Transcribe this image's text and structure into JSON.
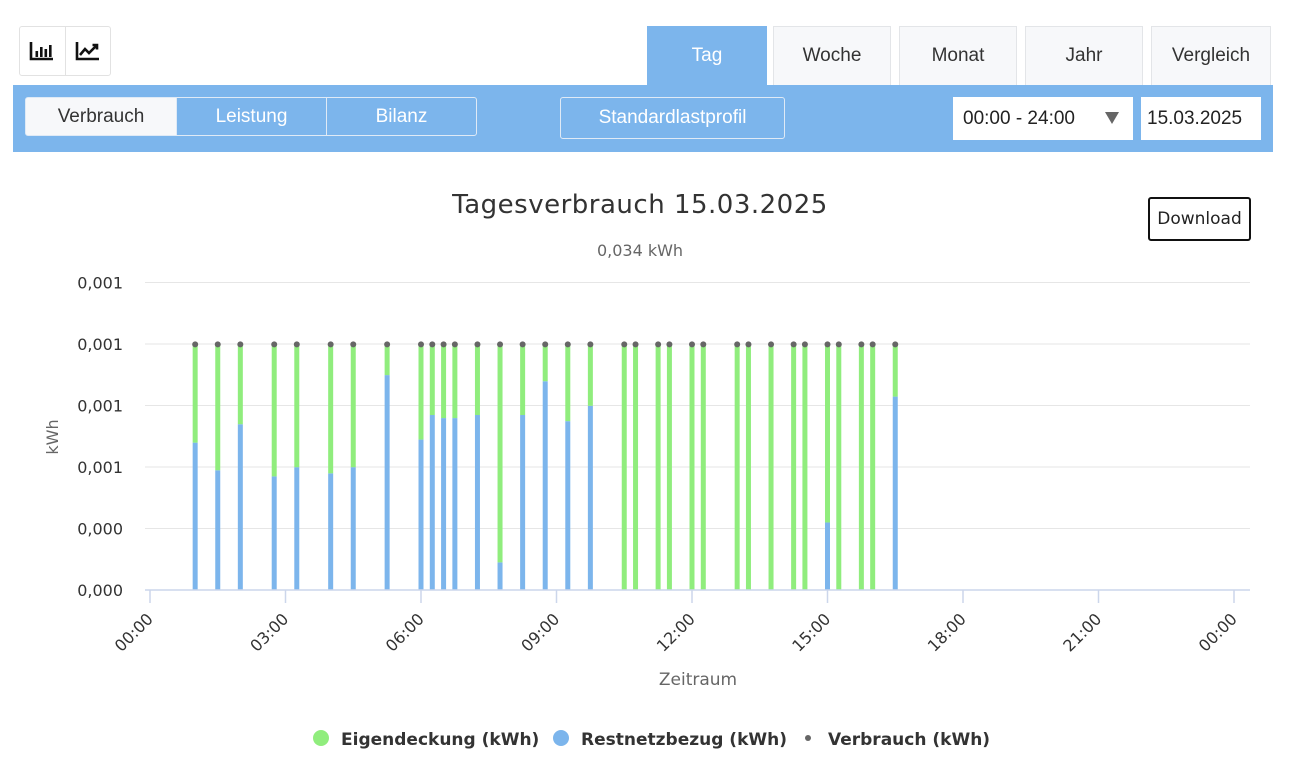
{
  "toolbar_icons": [
    {
      "name": "bar-chart-icon"
    },
    {
      "name": "line-chart-icon"
    }
  ],
  "tabs": [
    {
      "label": "Tag",
      "active": true
    },
    {
      "label": "Woche",
      "active": false
    },
    {
      "label": "Monat",
      "active": false
    },
    {
      "label": "Jahr",
      "active": false
    },
    {
      "label": "Vergleich",
      "active": false
    }
  ],
  "modes": [
    {
      "label": "Verbrauch",
      "active": true
    },
    {
      "label": "Leistung",
      "active": false
    },
    {
      "label": "Bilanz",
      "active": false
    }
  ],
  "profile_button": "Standardlastprofil",
  "time_range": "00:00 - 24:00",
  "date": "15.03.2025",
  "download_label": "Download",
  "colors": {
    "accent": "#7cb5ec",
    "eigendeckung": "#90ed7d",
    "restnetzbezug": "#7cb5ec",
    "verbrauch": "#666666"
  },
  "chart_data": {
    "type": "bar",
    "stacked": true,
    "title": "Tagesverbrauch 15.03.2025",
    "subtitle": "0,034 kWh",
    "xlabel": "Zeitraum",
    "ylabel": "kWh",
    "y_tick_labels": [
      "0,000",
      "0,000",
      "0,001",
      "0,001",
      "0,001",
      "0,001"
    ],
    "ylim": [
      0,
      0.001
    ],
    "x_tick_labels": [
      "00:00",
      "03:00",
      "06:00",
      "09:00",
      "12:00",
      "15:00",
      "18:00",
      "21:00",
      "00:00"
    ],
    "x_range_hours": [
      0,
      24
    ],
    "grid": true,
    "legend_position": "bottom",
    "series": [
      {
        "name": "Eigendeckung (kWh)",
        "type": "bar"
      },
      {
        "name": "Restnetzbezug (kWh)",
        "type": "bar"
      },
      {
        "name": "Verbrauch (kWh)",
        "type": "scatter"
      }
    ],
    "points": [
      {
        "time": "01:00",
        "restnetzbezug": 0.00048,
        "eigendeckung": 0.00032,
        "verbrauch": 0.0008
      },
      {
        "time": "01:30",
        "restnetzbezug": 0.00039,
        "eigendeckung": 0.00041,
        "verbrauch": 0.0008
      },
      {
        "time": "02:00",
        "restnetzbezug": 0.00054,
        "eigendeckung": 0.00026,
        "verbrauch": 0.0008
      },
      {
        "time": "02:45",
        "restnetzbezug": 0.00037,
        "eigendeckung": 0.00043,
        "verbrauch": 0.0008
      },
      {
        "time": "03:15",
        "restnetzbezug": 0.0004,
        "eigendeckung": 0.0004,
        "verbrauch": 0.0008
      },
      {
        "time": "04:00",
        "restnetzbezug": 0.00038,
        "eigendeckung": 0.00042,
        "verbrauch": 0.0008
      },
      {
        "time": "04:30",
        "restnetzbezug": 0.0004,
        "eigendeckung": 0.0004,
        "verbrauch": 0.0008
      },
      {
        "time": "05:15",
        "restnetzbezug": 0.0007,
        "eigendeckung": 0.0001,
        "verbrauch": 0.0008
      },
      {
        "time": "06:00",
        "restnetzbezug": 0.00049,
        "eigendeckung": 0.00031,
        "verbrauch": 0.0008
      },
      {
        "time": "06:15",
        "restnetzbezug": 0.00057,
        "eigendeckung": 0.00023,
        "verbrauch": 0.0008
      },
      {
        "time": "06:30",
        "restnetzbezug": 0.00056,
        "eigendeckung": 0.00024,
        "verbrauch": 0.0008
      },
      {
        "time": "06:45",
        "restnetzbezug": 0.00056,
        "eigendeckung": 0.00024,
        "verbrauch": 0.0008
      },
      {
        "time": "07:15",
        "restnetzbezug": 0.00057,
        "eigendeckung": 0.00023,
        "verbrauch": 0.0008
      },
      {
        "time": "07:45",
        "restnetzbezug": 9e-05,
        "eigendeckung": 0.00071,
        "verbrauch": 0.0008
      },
      {
        "time": "08:15",
        "restnetzbezug": 0.00057,
        "eigendeckung": 0.00023,
        "verbrauch": 0.0008
      },
      {
        "time": "08:45",
        "restnetzbezug": 0.00068,
        "eigendeckung": 0.00012,
        "verbrauch": 0.0008
      },
      {
        "time": "09:15",
        "restnetzbezug": 0.00055,
        "eigendeckung": 0.00025,
        "verbrauch": 0.0008
      },
      {
        "time": "09:45",
        "restnetzbezug": 0.0006,
        "eigendeckung": 0.0002,
        "verbrauch": 0.0008
      },
      {
        "time": "10:30",
        "restnetzbezug": 0,
        "eigendeckung": 0.0008,
        "verbrauch": 0.0008
      },
      {
        "time": "10:45",
        "restnetzbezug": 0,
        "eigendeckung": 0.0008,
        "verbrauch": 0.0008
      },
      {
        "time": "11:15",
        "restnetzbezug": 0,
        "eigendeckung": 0.0008,
        "verbrauch": 0.0008
      },
      {
        "time": "11:30",
        "restnetzbezug": 0,
        "eigendeckung": 0.0008,
        "verbrauch": 0.0008
      },
      {
        "time": "12:00",
        "restnetzbezug": 0,
        "eigendeckung": 0.0008,
        "verbrauch": 0.0008
      },
      {
        "time": "12:15",
        "restnetzbezug": 0,
        "eigendeckung": 0.0008,
        "verbrauch": 0.0008
      },
      {
        "time": "13:00",
        "restnetzbezug": 0,
        "eigendeckung": 0.0008,
        "verbrauch": 0.0008
      },
      {
        "time": "13:15",
        "restnetzbezug": 0,
        "eigendeckung": 0.0008,
        "verbrauch": 0.0008
      },
      {
        "time": "13:45",
        "restnetzbezug": 0,
        "eigendeckung": 0.0008,
        "verbrauch": 0.0008
      },
      {
        "time": "14:15",
        "restnetzbezug": 0,
        "eigendeckung": 0.0008,
        "verbrauch": 0.0008
      },
      {
        "time": "14:30",
        "restnetzbezug": 0,
        "eigendeckung": 0.0008,
        "verbrauch": 0.0008
      },
      {
        "time": "15:00",
        "restnetzbezug": 0.00022,
        "eigendeckung": 0.00058,
        "verbrauch": 0.0008
      },
      {
        "time": "15:15",
        "restnetzbezug": 0,
        "eigendeckung": 0.0008,
        "verbrauch": 0.0008
      },
      {
        "time": "15:45",
        "restnetzbezug": 0,
        "eigendeckung": 0.0008,
        "verbrauch": 0.0008
      },
      {
        "time": "16:00",
        "restnetzbezug": 0,
        "eigendeckung": 0.0008,
        "verbrauch": 0.0008
      },
      {
        "time": "16:30",
        "restnetzbezug": 0.00063,
        "eigendeckung": 0.00017,
        "verbrauch": 0.0008
      }
    ]
  }
}
